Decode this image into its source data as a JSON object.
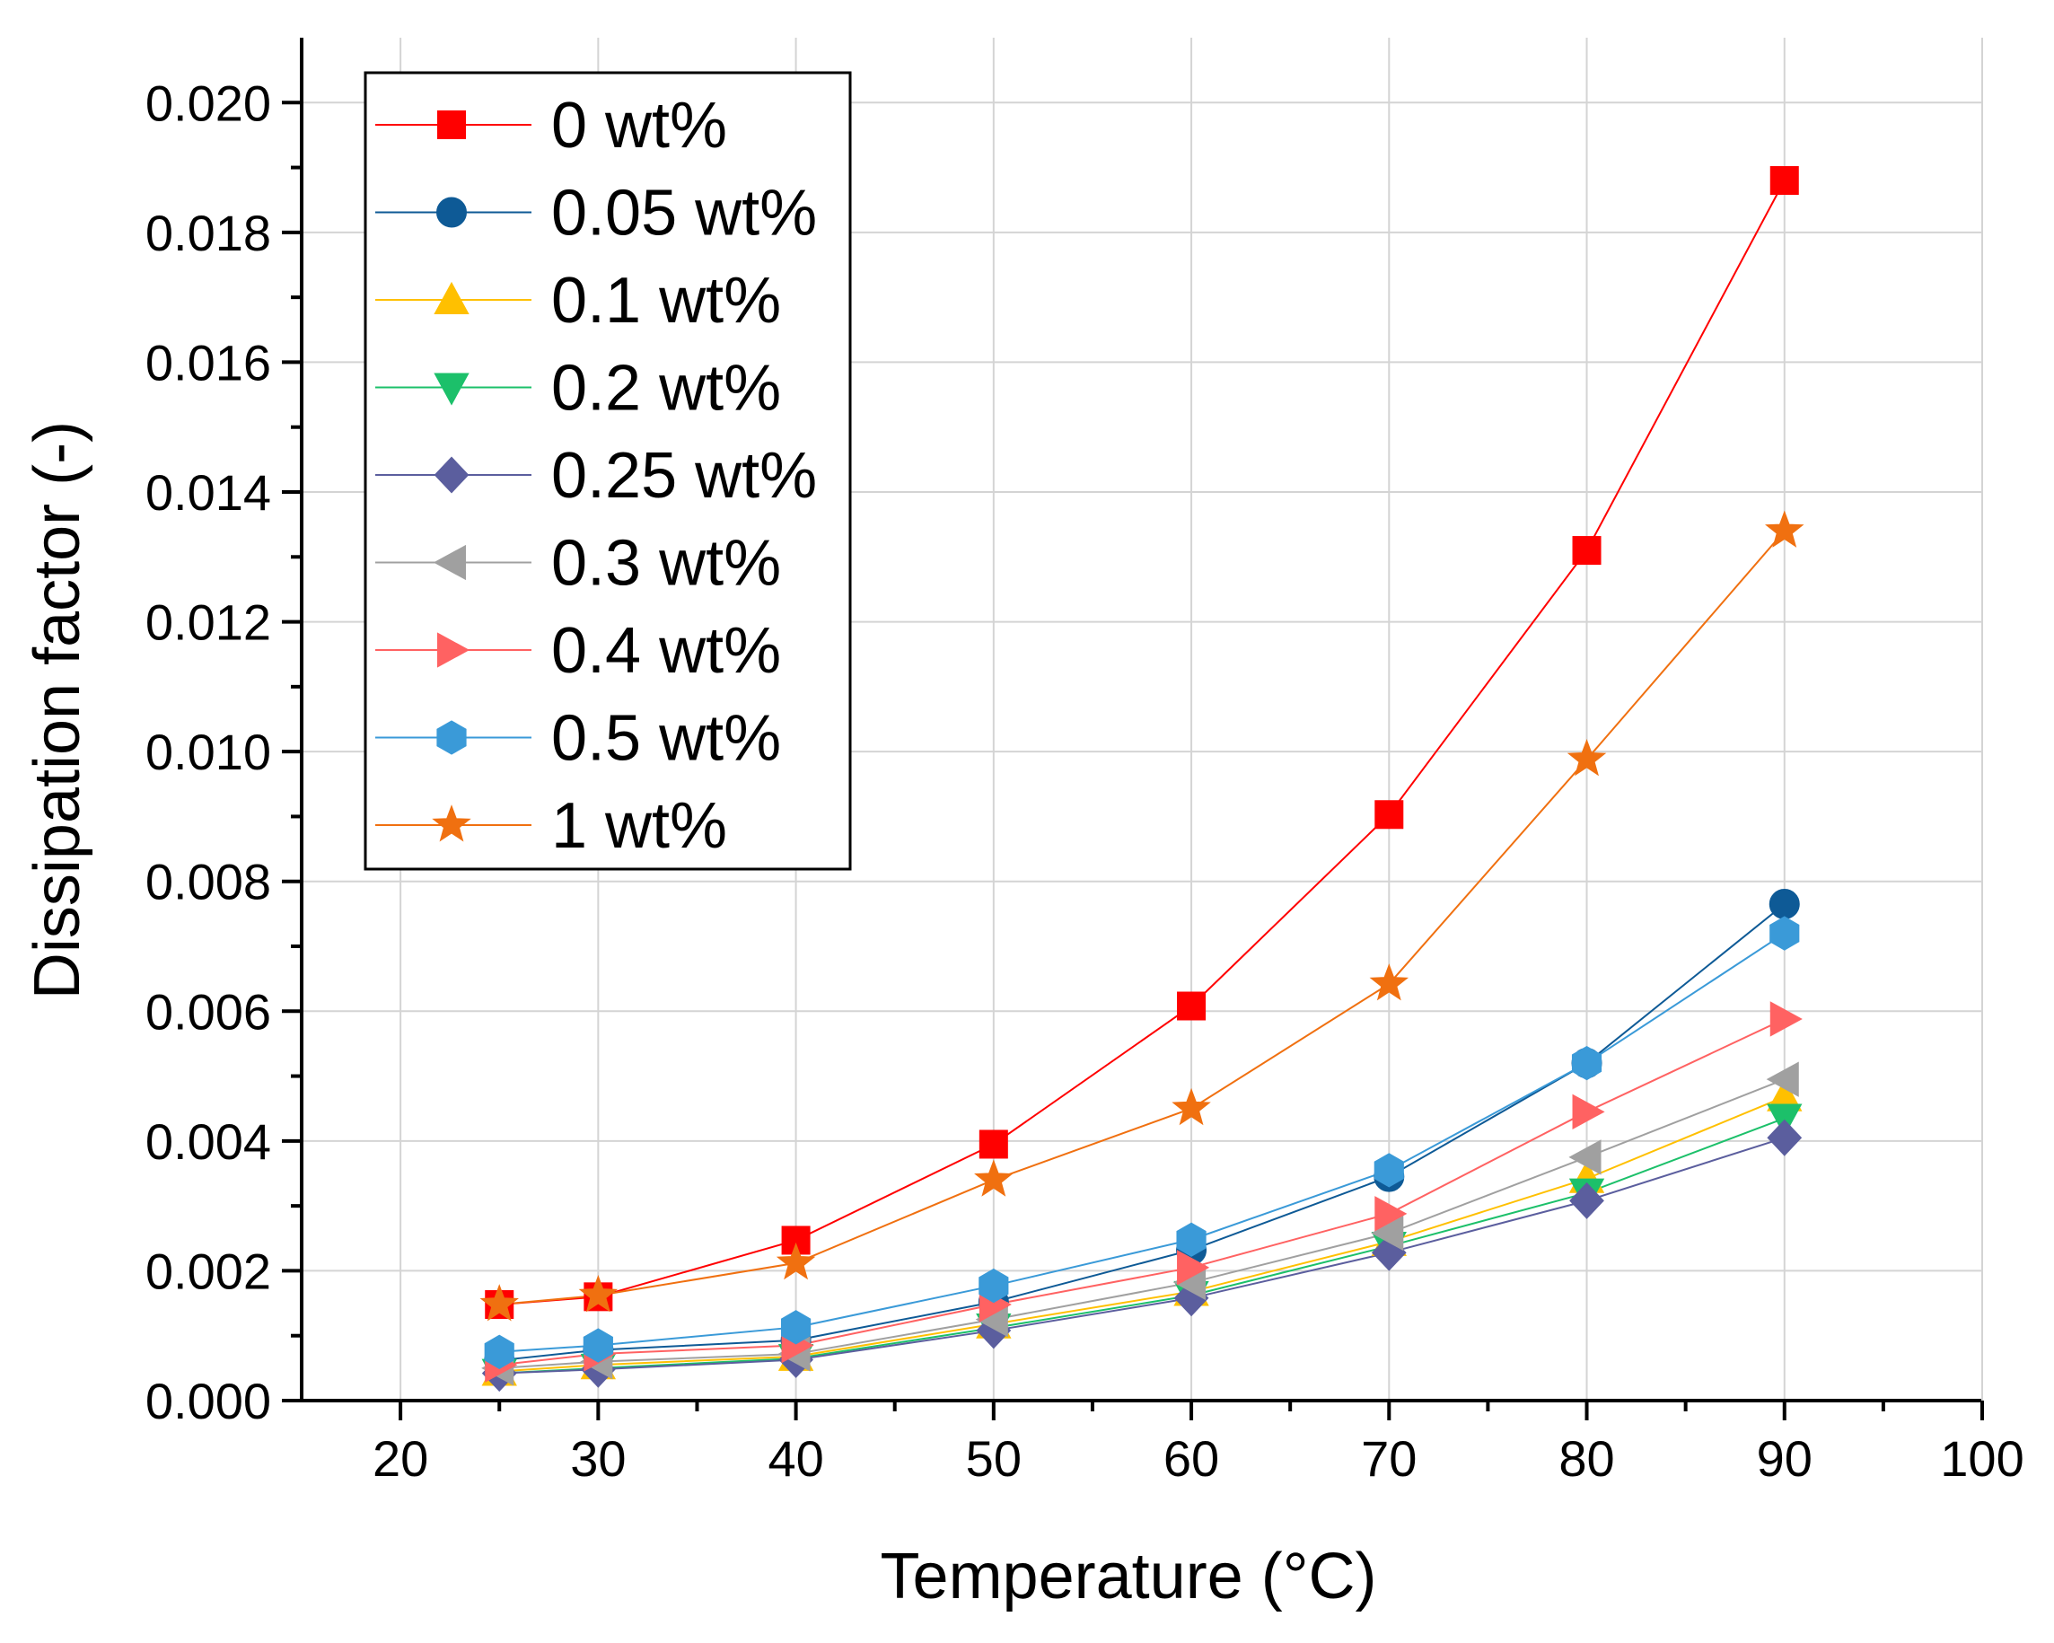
{
  "chart_data": {
    "type": "line",
    "title": "",
    "xlabel": "Temperature (°C)",
    "ylabel": "Dissipation factor (-)",
    "xlim": [
      15,
      100
    ],
    "ylim": [
      0,
      0.021
    ],
    "x_ticks": [
      "20",
      "30",
      "40",
      "50",
      "60",
      "70",
      "80",
      "90",
      "100"
    ],
    "y_ticks": [
      "0.000",
      "0.002",
      "0.004",
      "0.006",
      "0.008",
      "0.010",
      "0.012",
      "0.014",
      "0.016",
      "0.018",
      "0.020"
    ],
    "grid": true,
    "legend_position": "top-left",
    "x": [
      25,
      30,
      40,
      50,
      60,
      70,
      80,
      90
    ],
    "series": [
      {
        "name": "0 wt%",
        "color": "#ff0000",
        "marker": "square",
        "values": [
          0.00148,
          0.0016,
          0.00247,
          0.00395,
          0.00608,
          0.00903,
          0.0131,
          0.0188
        ]
      },
      {
        "name": "0.05 wt%",
        "color": "#0e5a96",
        "marker": "circle",
        "values": [
          0.00062,
          0.00078,
          0.00093,
          0.00152,
          0.00232,
          0.00345,
          0.0052,
          0.00765
        ]
      },
      {
        "name": "0.1 wt%",
        "color": "#ffc000",
        "marker": "triangle-up",
        "values": [
          0.00045,
          0.00055,
          0.00068,
          0.00118,
          0.00168,
          0.00245,
          0.00342,
          0.00468
        ]
      },
      {
        "name": "0.2 wt%",
        "color": "#1cc06a",
        "marker": "triangle-down",
        "values": [
          0.00042,
          0.0005,
          0.00065,
          0.00112,
          0.00162,
          0.00238,
          0.0032,
          0.00435
        ]
      },
      {
        "name": "0.25 wt%",
        "color": "#5b5e9e",
        "marker": "diamond",
        "values": [
          0.00042,
          0.00048,
          0.00063,
          0.00108,
          0.00158,
          0.00228,
          0.00308,
          0.00405
        ]
      },
      {
        "name": "0.3 wt%",
        "color": "#a0a0a0",
        "marker": "triangle-left",
        "values": [
          0.0005,
          0.0006,
          0.00072,
          0.00125,
          0.00182,
          0.00258,
          0.00375,
          0.00495
        ]
      },
      {
        "name": "0.4 wt%",
        "color": "#ff6262",
        "marker": "triangle-right",
        "values": [
          0.00055,
          0.00072,
          0.00085,
          0.00148,
          0.00205,
          0.00288,
          0.00445,
          0.00588
        ]
      },
      {
        "name": "0.5 wt%",
        "color": "#3a9ad8",
        "marker": "hexagon",
        "values": [
          0.00075,
          0.00085,
          0.00113,
          0.00177,
          0.00248,
          0.00355,
          0.0052,
          0.0072
        ]
      },
      {
        "name": "1 wt%",
        "color": "#f07010",
        "marker": "star",
        "values": [
          0.00148,
          0.00162,
          0.00212,
          0.0034,
          0.0045,
          0.00642,
          0.00988,
          0.0134
        ]
      }
    ]
  }
}
